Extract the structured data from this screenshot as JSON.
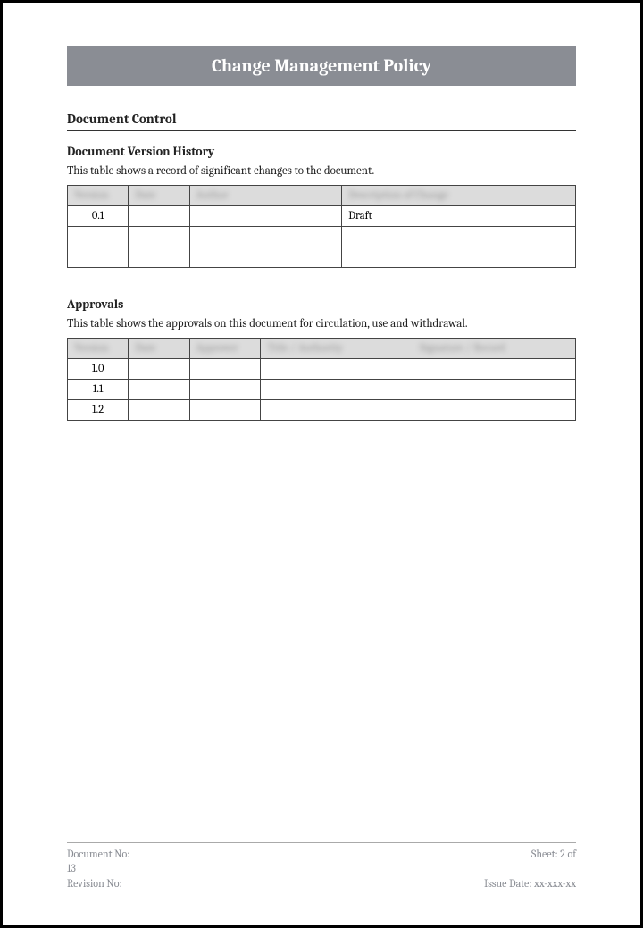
{
  "title": "Change Management Policy",
  "sections": {
    "documentControl": "Document Control",
    "versionHistory": {
      "heading": "Document Version History",
      "desc": "This table shows a record of significant changes to the document.",
      "headers": [
        "Version",
        "Date",
        "Author",
        "Description of Change"
      ],
      "rows": [
        {
          "version": "0.1",
          "date": "",
          "author": "",
          "desc": "Draft"
        },
        {
          "version": "",
          "date": "",
          "author": "",
          "desc": ""
        },
        {
          "version": "",
          "date": "",
          "author": "",
          "desc": ""
        }
      ],
      "colWidths": [
        "12%",
        "12%",
        "30%",
        "46%"
      ]
    },
    "approvals": {
      "heading": "Approvals",
      "desc": "This table shows the approvals on this document for circulation, use and withdrawal.",
      "headers": [
        "Version",
        "Date",
        "Approver",
        "Title / Authority",
        "Signature / Record"
      ],
      "rows": [
        {
          "version": "1.0"
        },
        {
          "version": "1.1"
        },
        {
          "version": "1.2"
        }
      ],
      "colWidths": [
        "12%",
        "12%",
        "14%",
        "30%",
        "32%"
      ]
    }
  },
  "footer": {
    "docNoLabel": "Document No:",
    "sheetLabel": "Sheet: 2 of",
    "pageTotal": "13",
    "revisionLabel": "Revision No:",
    "issueDateLabel": "Issue Date: xx-xxx-xx"
  },
  "colors": {
    "titleBarBg": "#8a8d94",
    "titleBarText": "#ffffff",
    "headerBg": "#dcdcdc",
    "border": "#444444",
    "footerText": "#8a8d94"
  }
}
